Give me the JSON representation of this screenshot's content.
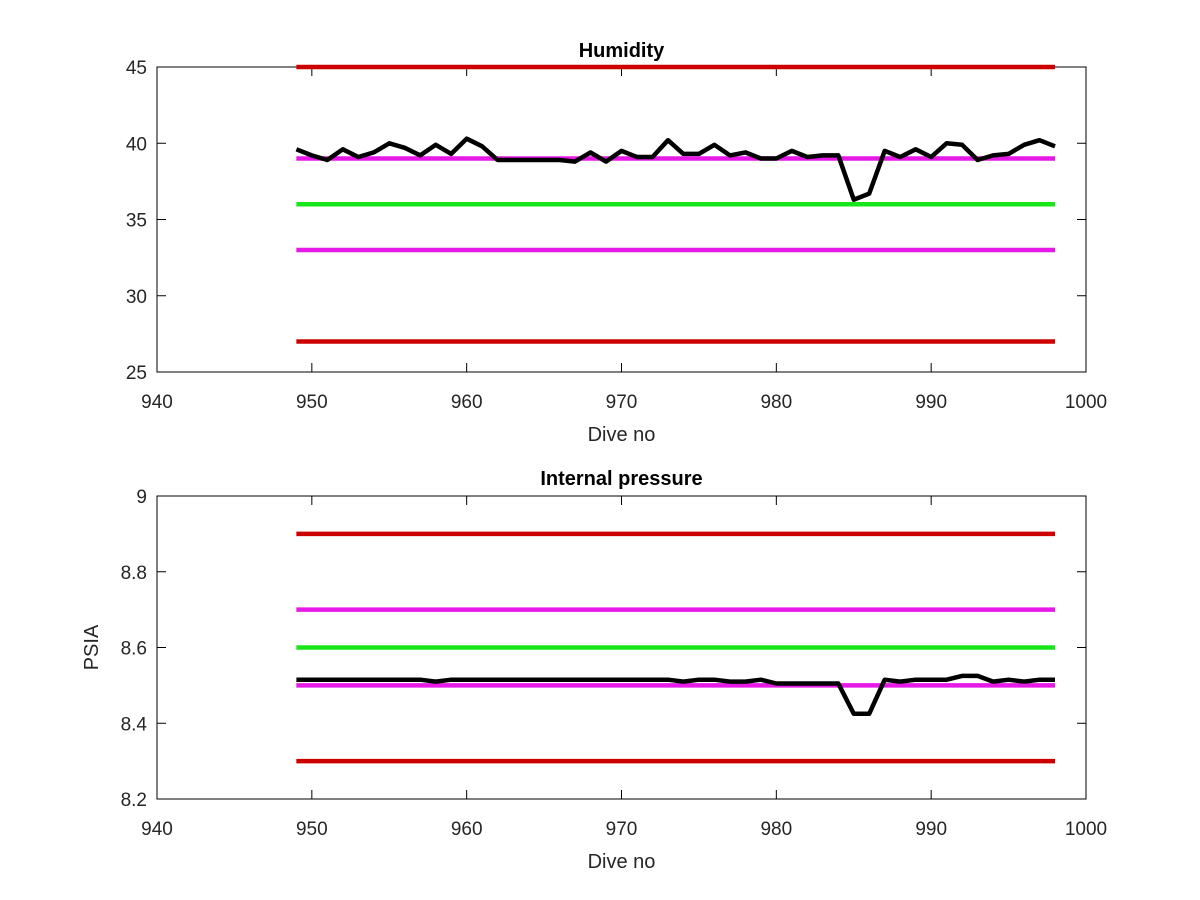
{
  "chart_data": [
    {
      "type": "line",
      "title": "Humidity",
      "xlabel": "Dive no",
      "ylabel": "",
      "xlim": [
        940,
        1000
      ],
      "ylim": [
        25,
        45
      ],
      "xticks": [
        940,
        950,
        960,
        970,
        980,
        990,
        1000
      ],
      "yticks": [
        25,
        30,
        35,
        40,
        45
      ],
      "xtick_labels": [
        "940",
        "950",
        "960",
        "970",
        "980",
        "990",
        "1000"
      ],
      "ytick_labels": [
        "25",
        "30",
        "35",
        "40",
        "45"
      ],
      "grid": false,
      "reference_lines": [
        {
          "y": 45,
          "color": "#cc0000",
          "x": [
            949,
            998
          ]
        },
        {
          "y": 39,
          "color": "#e619e6",
          "x": [
            949,
            998
          ]
        },
        {
          "y": 36,
          "color": "#19e619",
          "x": [
            949,
            998
          ]
        },
        {
          "y": 33,
          "color": "#e619e6",
          "x": [
            949,
            998
          ]
        },
        {
          "y": 27,
          "color": "#cc0000",
          "x": [
            949,
            998
          ]
        }
      ],
      "series": [
        {
          "color": "#000000",
          "x": [
            949,
            950,
            951,
            952,
            953,
            954,
            955,
            956,
            957,
            958,
            959,
            960,
            961,
            962,
            963,
            964,
            965,
            966,
            967,
            968,
            969,
            970,
            971,
            972,
            973,
            974,
            975,
            976,
            977,
            978,
            979,
            980,
            981,
            982,
            983,
            984,
            985,
            986,
            987,
            988,
            989,
            990,
            991,
            992,
            993,
            994,
            995,
            996,
            997,
            998
          ],
          "values": [
            39.6,
            39.2,
            38.9,
            39.6,
            39.1,
            39.4,
            40.0,
            39.7,
            39.2,
            39.9,
            39.3,
            40.3,
            39.8,
            38.9,
            38.9,
            38.9,
            38.9,
            38.9,
            38.8,
            39.4,
            38.8,
            39.5,
            39.1,
            39.1,
            40.2,
            39.3,
            39.3,
            39.9,
            39.2,
            39.4,
            39.0,
            39.0,
            39.5,
            39.1,
            39.2,
            39.2,
            36.3,
            36.7,
            39.5,
            39.1,
            39.6,
            39.1,
            40.0,
            39.9,
            38.9,
            39.2,
            39.3,
            39.9,
            40.2,
            39.8
          ]
        }
      ]
    },
    {
      "type": "line",
      "title": "Internal pressure",
      "xlabel": "Dive no",
      "ylabel": "PSIA",
      "xlim": [
        940,
        1000
      ],
      "ylim": [
        8.2,
        9
      ],
      "xticks": [
        940,
        950,
        960,
        970,
        980,
        990,
        1000
      ],
      "yticks": [
        8.2,
        8.4,
        8.6,
        8.8,
        9
      ],
      "xtick_labels": [
        "940",
        "950",
        "960",
        "970",
        "980",
        "990",
        "1000"
      ],
      "ytick_labels": [
        "8.2",
        "8.4",
        "8.6",
        "8.8",
        "9"
      ],
      "grid": false,
      "reference_lines": [
        {
          "y": 8.9,
          "color": "#cc0000",
          "x": [
            949,
            998
          ]
        },
        {
          "y": 8.7,
          "color": "#e619e6",
          "x": [
            949,
            998
          ]
        },
        {
          "y": 8.6,
          "color": "#19e619",
          "x": [
            949,
            998
          ]
        },
        {
          "y": 8.5,
          "color": "#e619e6",
          "x": [
            949,
            998
          ]
        },
        {
          "y": 8.3,
          "color": "#cc0000",
          "x": [
            949,
            998
          ]
        }
      ],
      "series": [
        {
          "color": "#000000",
          "x": [
            949,
            950,
            951,
            952,
            953,
            954,
            955,
            956,
            957,
            958,
            959,
            960,
            961,
            962,
            963,
            964,
            965,
            966,
            967,
            968,
            969,
            970,
            971,
            972,
            973,
            974,
            975,
            976,
            977,
            978,
            979,
            980,
            981,
            982,
            983,
            984,
            985,
            986,
            987,
            988,
            989,
            990,
            991,
            992,
            993,
            994,
            995,
            996,
            997,
            998
          ],
          "values": [
            8.515,
            8.515,
            8.515,
            8.515,
            8.515,
            8.515,
            8.515,
            8.515,
            8.515,
            8.51,
            8.515,
            8.515,
            8.515,
            8.515,
            8.515,
            8.515,
            8.515,
            8.515,
            8.515,
            8.515,
            8.515,
            8.515,
            8.515,
            8.515,
            8.515,
            8.51,
            8.515,
            8.515,
            8.51,
            8.51,
            8.515,
            8.505,
            8.505,
            8.505,
            8.505,
            8.505,
            8.425,
            8.425,
            8.515,
            8.51,
            8.515,
            8.515,
            8.515,
            8.525,
            8.525,
            8.51,
            8.515,
            8.51,
            8.515,
            8.515
          ]
        }
      ]
    }
  ]
}
